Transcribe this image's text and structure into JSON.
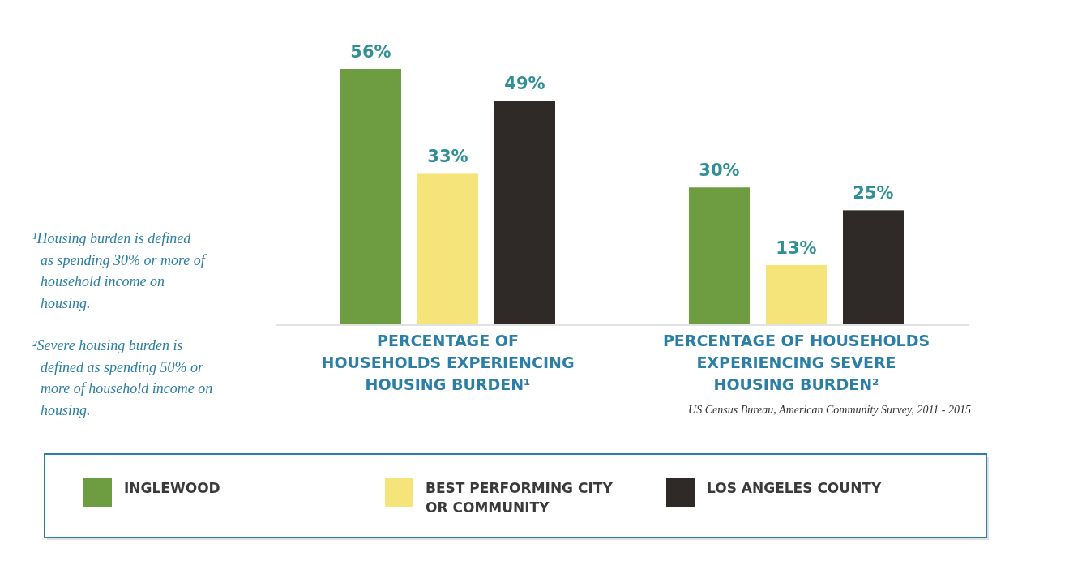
{
  "chart_data": {
    "type": "bar",
    "categories": [
      "PERCENTAGE OF HOUSEHOLDS EXPERIENCING HOUSING BURDEN¹",
      "PERCENTAGE OF HOUSEHOLDS EXPERIENCING SEVERE HOUSING BURDEN²"
    ],
    "series": [
      {
        "name": "INGLEWOOD",
        "color": "#6e9c40",
        "values": [
          56,
          30
        ],
        "value_labels": [
          "56%",
          "30%"
        ]
      },
      {
        "name": "BEST PERFORMING CITY OR COMMUNITY",
        "color": "#f5e47a",
        "values": [
          33,
          13
        ],
        "value_labels": [
          "33%",
          "13%"
        ]
      },
      {
        "name": "LOS ANGELES COUNTY",
        "color": "#2f2a28",
        "values": [
          49,
          25
        ],
        "value_labels": [
          "49%",
          "25%"
        ]
      }
    ],
    "legend": "bottom",
    "annotations": [
      "¹Housing burden is defined as spending 30% or more of household income on housing.",
      "²Severe housing burden is defined as spending 50% or more of household income on housing.",
      "US Census Bureau, American Community Survey, 2011 - 2015"
    ]
  }
}
